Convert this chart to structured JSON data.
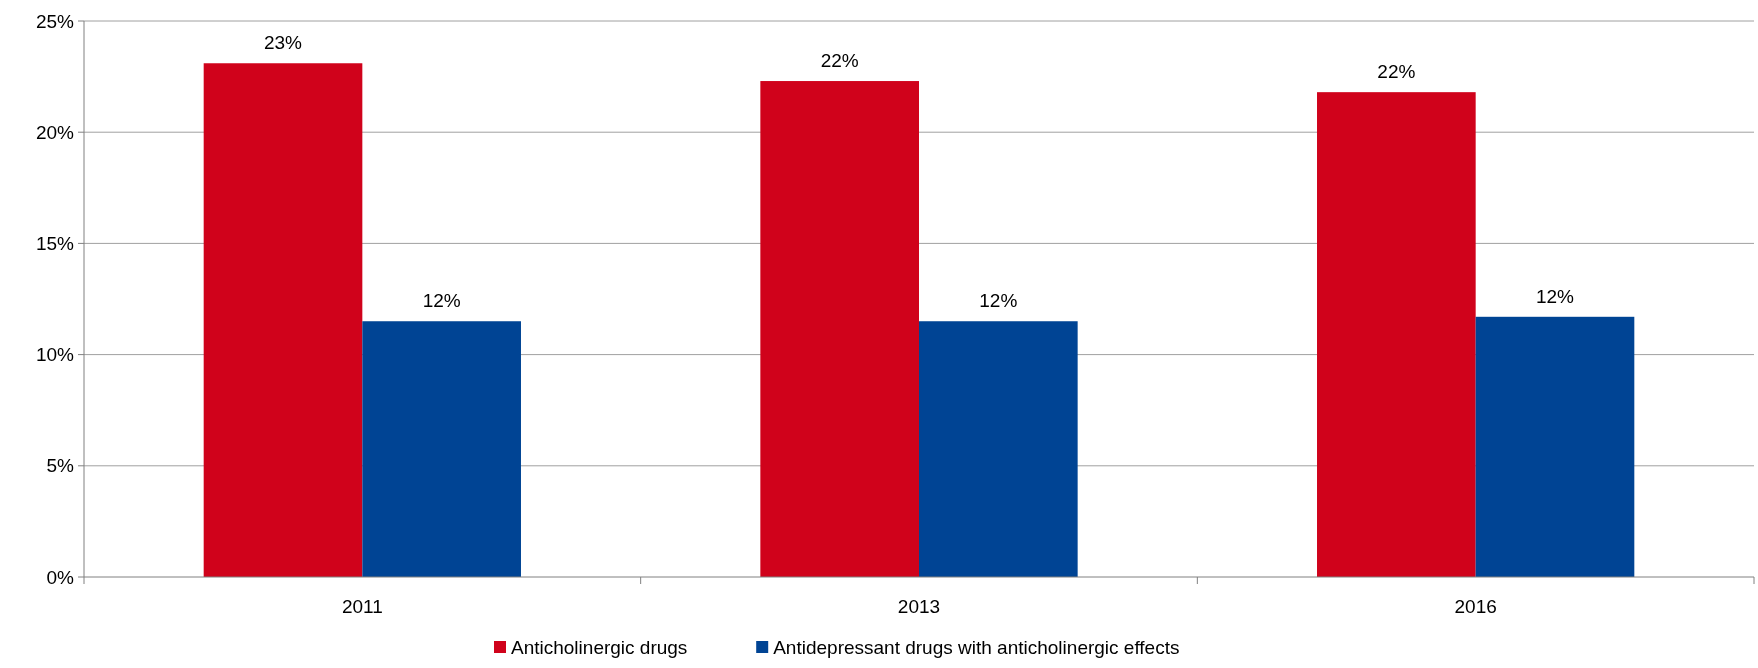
{
  "chart_data": {
    "type": "bar",
    "categories": [
      "2011",
      "2013",
      "2016"
    ],
    "series": [
      {
        "name": "Anticholinergic drugs",
        "color": "#d0021b",
        "values": [
          23.1,
          22.3,
          21.8
        ],
        "value_labels": [
          "23%",
          "22%",
          "22%"
        ]
      },
      {
        "name": "Antidepressant drugs with anticholinergic effects",
        "color": "#004494",
        "values": [
          11.5,
          11.5,
          11.7
        ],
        "value_labels": [
          "12%",
          "12%",
          "12%"
        ]
      }
    ],
    "ylim": [
      0,
      25
    ],
    "yticks": [
      {
        "value": 0,
        "label": "0%"
      },
      {
        "value": 5,
        "label": "5%"
      },
      {
        "value": 10,
        "label": "10%"
      },
      {
        "value": 15,
        "label": "15%"
      },
      {
        "value": 20,
        "label": "20%"
      },
      {
        "value": 25,
        "label": "25%"
      }
    ],
    "grid": "y",
    "legend": "bottom"
  }
}
